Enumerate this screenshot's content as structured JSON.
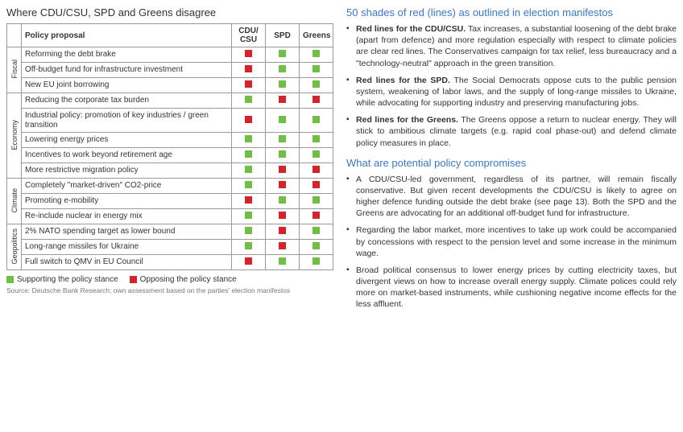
{
  "colors": {
    "support": "#6fbf44",
    "oppose": "#d4232a",
    "heading": "#3a78c9",
    "border": "#999999",
    "text": "#333333",
    "source": "#777777"
  },
  "table": {
    "title": "Where CDU/CSU, SPD and Greens disagree",
    "columns": [
      "Policy proposal",
      "CDU/ CSU",
      "SPD",
      "Greens"
    ],
    "categories": [
      {
        "name": "Fiscal",
        "rows": [
          {
            "proposal": "Reforming the debt brake",
            "marks": [
              "oppose",
              "support",
              "support"
            ]
          },
          {
            "proposal": "Off-budget fund for infrastructure investment",
            "marks": [
              "oppose",
              "support",
              "support"
            ]
          },
          {
            "proposal": "New EU joint borrowing",
            "marks": [
              "oppose",
              "support",
              "support"
            ]
          }
        ]
      },
      {
        "name": "Economy",
        "rows": [
          {
            "proposal": "Reducing the corporate tax burden",
            "marks": [
              "support",
              "oppose",
              "oppose"
            ]
          },
          {
            "proposal": "Industrial policy: promotion of key industries / green transition",
            "marks": [
              "oppose",
              "support",
              "support"
            ]
          },
          {
            "proposal": "Lowering energy prices",
            "marks": [
              "support",
              "support",
              "support"
            ]
          },
          {
            "proposal": "Incentives to work beyond retirement age",
            "marks": [
              "support",
              "support",
              "support"
            ]
          },
          {
            "proposal": "More restrictive migration policy",
            "marks": [
              "support",
              "oppose",
              "oppose"
            ]
          }
        ]
      },
      {
        "name": "Climate",
        "rows": [
          {
            "proposal": "Completely \"market-driven\" CO2-price",
            "marks": [
              "support",
              "oppose",
              "oppose"
            ]
          },
          {
            "proposal": "Promoting e-mobility",
            "marks": [
              "oppose",
              "support",
              "support"
            ]
          },
          {
            "proposal": "Re-include nuclear in energy mix",
            "marks": [
              "support",
              "oppose",
              "oppose"
            ]
          }
        ]
      },
      {
        "name": "Geopolitics",
        "rows": [
          {
            "proposal": "2% NATO spending target as lower bound",
            "marks": [
              "support",
              "oppose",
              "support"
            ]
          },
          {
            "proposal": "Long-range missiles for Ukraine",
            "marks": [
              "support",
              "oppose",
              "support"
            ]
          },
          {
            "proposal": "Full switch to QMV in EU Council",
            "marks": [
              "oppose",
              "support",
              "support"
            ]
          }
        ]
      }
    ],
    "legend": {
      "support": "Supporting the policy stance",
      "oppose": "Opposing the policy stance"
    },
    "source": "Source: Deutsche Bank Research; own assessment based on the parties' election manifestos"
  },
  "right": {
    "section1": {
      "title": "50 shades of red (lines) as outlined in election manifestos",
      "bullets": [
        {
          "bold": "Red lines for the CDU/CSU.",
          "text": " Tax increases, a substantial loosening of the debt brake (apart from defence) and more regulation especially with respect to climate policies are clear red lines. The Conservatives campaign for tax relief, less bureaucracy and a \"technology-neutral\" approach in the green transition."
        },
        {
          "bold": "Red lines for the SPD.",
          "text": " The Social Democrats oppose cuts to the public pension system, weakening of labor laws, and the supply of long-range missiles to Ukraine, while advocating for supporting industry and preserving manufacturing jobs."
        },
        {
          "bold": "Red lines for the Greens.",
          "text": " The Greens oppose a return to nuclear energy. They will stick to ambitious climate targets (e.g. rapid coal phase-out) and defend climate policy measures in place."
        }
      ]
    },
    "section2": {
      "title": "What are potential policy compromises",
      "bullets": [
        {
          "bold": "",
          "text": "A CDU/CSU-led government, regardless of its partner, will remain fiscally conservative. But given recent developments the CDU/CSU is likely to agree on higher defence funding outside the debt brake (see page 13). Both the SPD and the Greens are advocating for an additional off-budget fund for infrastructure."
        },
        {
          "bold": "",
          "text": "Regarding the labor market, more incentives to take up work could be accompanied by concessions with respect to the pension level and some increase in the minimum wage."
        },
        {
          "bold": "",
          "text": "Broad political consensus to lower energy prices by cutting electricity taxes, but divergent views on how to increase overall energy supply. Climate polices could rely more on market-based instruments, while cushioning negative income effects for the less affluent."
        }
      ]
    }
  }
}
